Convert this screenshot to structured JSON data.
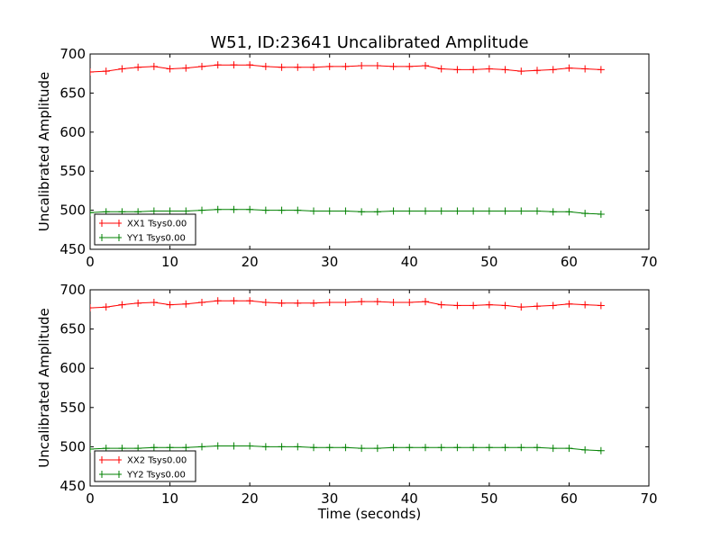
{
  "title": "W51, ID:23641 Uncalibrated Amplitude",
  "colors": {
    "red": "#ff0000",
    "green": "#008000"
  },
  "chart_data": [
    {
      "type": "line",
      "xlabel": "",
      "ylabel": "Uncalibrated Amplitude",
      "xlim": [
        0,
        70
      ],
      "ylim": [
        450,
        700
      ],
      "xticks": [
        0,
        10,
        20,
        30,
        40,
        50,
        60,
        70
      ],
      "yticks": [
        450,
        500,
        550,
        600,
        650,
        700
      ],
      "legend_position": "lower-left",
      "grid": false,
      "series": [
        {
          "name": "XX1 Tsys0.00",
          "color": "#ff0000",
          "x": [
            0,
            2,
            4,
            6,
            8,
            10,
            12,
            14,
            16,
            18,
            20,
            22,
            24,
            26,
            28,
            30,
            32,
            34,
            36,
            38,
            40,
            42,
            44,
            46,
            48,
            50,
            52,
            54,
            56,
            58,
            60,
            62,
            64
          ],
          "y": [
            677,
            678,
            681,
            683,
            684,
            681,
            682,
            684,
            686,
            686,
            686,
            684,
            683,
            683,
            683,
            684,
            684,
            685,
            685,
            684,
            684,
            685,
            681,
            680,
            680,
            681,
            680,
            678,
            679,
            680,
            682,
            681,
            680
          ]
        },
        {
          "name": "YY1 Tsys0.00",
          "color": "#008000",
          "x": [
            0,
            2,
            4,
            6,
            8,
            10,
            12,
            14,
            16,
            18,
            20,
            22,
            24,
            26,
            28,
            30,
            32,
            34,
            36,
            38,
            40,
            42,
            44,
            46,
            48,
            50,
            52,
            54,
            56,
            58,
            60,
            62,
            64
          ],
          "y": [
            497,
            498,
            498,
            498,
            499,
            499,
            499,
            500,
            501,
            501,
            501,
            500,
            500,
            500,
            499,
            499,
            499,
            498,
            498,
            499,
            499,
            499,
            499,
            499,
            499,
            499,
            499,
            499,
            499,
            498,
            498,
            496,
            495
          ]
        }
      ]
    },
    {
      "type": "line",
      "xlabel": "Time (seconds)",
      "ylabel": "Uncalibrated Amplitude",
      "xlim": [
        0,
        70
      ],
      "ylim": [
        450,
        700
      ],
      "xticks": [
        0,
        10,
        20,
        30,
        40,
        50,
        60,
        70
      ],
      "yticks": [
        450,
        500,
        550,
        600,
        650,
        700
      ],
      "legend_position": "lower-left",
      "grid": false,
      "series": [
        {
          "name": "XX2 Tsys0.00",
          "color": "#ff0000",
          "x": [
            0,
            2,
            4,
            6,
            8,
            10,
            12,
            14,
            16,
            18,
            20,
            22,
            24,
            26,
            28,
            30,
            32,
            34,
            36,
            38,
            40,
            42,
            44,
            46,
            48,
            50,
            52,
            54,
            56,
            58,
            60,
            62,
            64
          ],
          "y": [
            677,
            678,
            681,
            683,
            684,
            681,
            682,
            684,
            686,
            686,
            686,
            684,
            683,
            683,
            683,
            684,
            684,
            685,
            685,
            684,
            684,
            685,
            681,
            680,
            680,
            681,
            680,
            678,
            679,
            680,
            682,
            681,
            680
          ]
        },
        {
          "name": "YY2 Tsys0.00",
          "color": "#008000",
          "x": [
            0,
            2,
            4,
            6,
            8,
            10,
            12,
            14,
            16,
            18,
            20,
            22,
            24,
            26,
            28,
            30,
            32,
            34,
            36,
            38,
            40,
            42,
            44,
            46,
            48,
            50,
            52,
            54,
            56,
            58,
            60,
            62,
            64
          ],
          "y": [
            497,
            498,
            498,
            498,
            499,
            499,
            499,
            500,
            501,
            501,
            501,
            500,
            500,
            500,
            499,
            499,
            499,
            498,
            498,
            499,
            499,
            499,
            499,
            499,
            499,
            499,
            499,
            499,
            499,
            498,
            498,
            496,
            495
          ]
        }
      ]
    }
  ]
}
